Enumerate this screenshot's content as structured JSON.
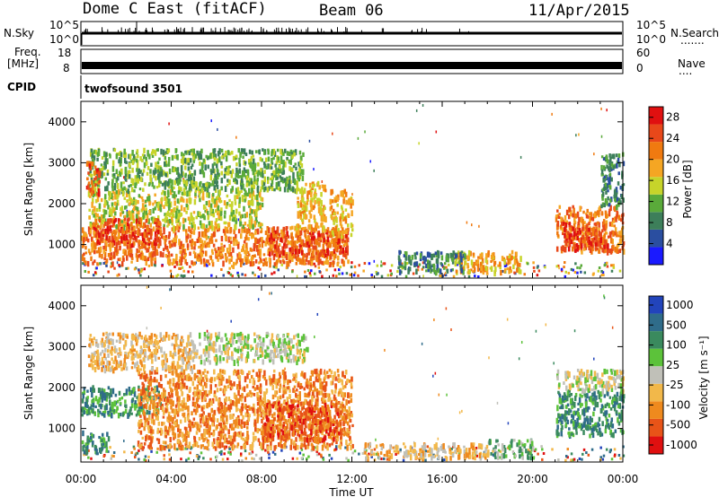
{
  "header": {
    "station": "Dome C East (fitACF)",
    "beam": "Beam 06",
    "date": "11/Apr/2015"
  },
  "top_panels": {
    "nsky_label": "N.Sky",
    "nsky_ticks": [
      "10^5",
      "10^0"
    ],
    "nsearch_label": "N.Search",
    "nsearch_dots": ".......",
    "freq_label_1": "Freq.",
    "freq_label_2": "[MHz]",
    "freq_ticks": [
      "18",
      "8"
    ],
    "nave_label": "Nave",
    "nave_dots": "....",
    "nave_ticks": [
      "60",
      "0"
    ],
    "cpid_label": "CPID",
    "cpid_value": "twofsound 3501"
  },
  "colors": {
    "power": [
      "#1a1aff",
      "#2a4ea0",
      "#3d7f5a",
      "#5aaa3a",
      "#c7d42a",
      "#f5a623",
      "#f07a10",
      "#e8481a",
      "#e01010"
    ],
    "velocity": [
      "#2244bb",
      "#2f6c8a",
      "#3a8a5e",
      "#5cc23a",
      "#c0c0b8",
      "#f2b84a",
      "#ef8a1e",
      "#e85418",
      "#e01010"
    ]
  },
  "chart_data": [
    {
      "type": "heatmap",
      "name": "power",
      "ylabel": "Slant Range [km]",
      "xlabel": "Time UT",
      "xticks": [
        "00:00",
        "04:00",
        "08:00",
        "12:00",
        "16:00",
        "20:00",
        "00:00"
      ],
      "xlim_hours": [
        0,
        24
      ],
      "yticks": [
        1000,
        2000,
        3000,
        4000
      ],
      "ylim": [
        180,
        4500
      ],
      "colorbar_label": "Power [dB]",
      "colorbar_ticks": [
        "4",
        "8",
        "12",
        "16",
        "20",
        "24",
        "28"
      ],
      "colorbar_range": [
        0,
        30
      ],
      "regions": [
        {
          "t": [
            0.0,
            11.8
          ],
          "r": [
            500,
            1400
          ],
          "val": 24
        },
        {
          "t": [
            0.3,
            8.0
          ],
          "r": [
            1400,
            2300
          ],
          "val": 16
        },
        {
          "t": [
            0.3,
            9.8
          ],
          "r": [
            2300,
            3300
          ],
          "val": 10
        },
        {
          "t": [
            0.2,
            0.8
          ],
          "r": [
            2200,
            3000
          ],
          "val": 26
        },
        {
          "t": [
            0.5,
            3.5
          ],
          "r": [
            900,
            1600
          ],
          "val": 27
        },
        {
          "t": [
            8.3,
            11.8
          ],
          "r": [
            700,
            1300
          ],
          "val": 27
        },
        {
          "t": [
            9.5,
            10.8
          ],
          "r": [
            1300,
            2500
          ],
          "val": 20
        },
        {
          "t": [
            11.0,
            12.0
          ],
          "r": [
            1200,
            2300
          ],
          "val": 18
        },
        {
          "t": [
            16.5,
            19.5
          ],
          "r": [
            300,
            800
          ],
          "val": 18
        },
        {
          "t": [
            14.0,
            17.0
          ],
          "r": [
            300,
            800
          ],
          "val": 8
        },
        {
          "t": [
            21.0,
            24.0
          ],
          "r": [
            800,
            1900
          ],
          "val": 24
        },
        {
          "t": [
            21.3,
            23.3
          ],
          "r": [
            800,
            1500
          ],
          "val": 28
        },
        {
          "t": [
            23.0,
            24.0
          ],
          "r": [
            1900,
            3200
          ],
          "val": 8
        }
      ]
    },
    {
      "type": "heatmap",
      "name": "velocity",
      "ylabel": "Slant Range [km]",
      "xlabel": "Time UT",
      "xticks": [
        "00:00",
        "04:00",
        "08:00",
        "12:00",
        "16:00",
        "20:00",
        "00:00"
      ],
      "xlim_hours": [
        0,
        24
      ],
      "yticks": [
        1000,
        2000,
        3000,
        4000
      ],
      "ylim": [
        180,
        4500
      ],
      "colorbar_label": "Velocity [m s⁻¹]",
      "colorbar_ticks": [
        "1000",
        "500",
        "100",
        "25",
        "-25",
        "-100",
        "-500",
        "-1000"
      ],
      "regions": [
        {
          "t": [
            0.0,
            3.5
          ],
          "r": [
            1300,
            2000
          ],
          "val": 2
        },
        {
          "t": [
            0.0,
            1.2
          ],
          "r": [
            400,
            900
          ],
          "val": 2
        },
        {
          "t": [
            2.5,
            12.0
          ],
          "r": [
            500,
            2400
          ],
          "val": 6
        },
        {
          "t": [
            8.0,
            11.5
          ],
          "r": [
            700,
            1600
          ],
          "val": 7
        },
        {
          "t": [
            0.3,
            5.0
          ],
          "r": [
            2400,
            3300
          ],
          "val": 5
        },
        {
          "t": [
            5.0,
            10.0
          ],
          "r": [
            2600,
            3300
          ],
          "val": 4
        },
        {
          "t": [
            18.0,
            20.0
          ],
          "r": [
            250,
            700
          ],
          "val": 3
        },
        {
          "t": [
            21.0,
            24.0
          ],
          "r": [
            800,
            1900
          ],
          "val": 2
        },
        {
          "t": [
            21.0,
            24.0
          ],
          "r": [
            1900,
            2400
          ],
          "val": 4
        },
        {
          "t": [
            12.5,
            18.0
          ],
          "r": [
            250,
            600
          ],
          "val": 5
        }
      ]
    }
  ],
  "axis": {
    "ylabel": "Slant Range [km]",
    "xlabel": "Time UT"
  }
}
